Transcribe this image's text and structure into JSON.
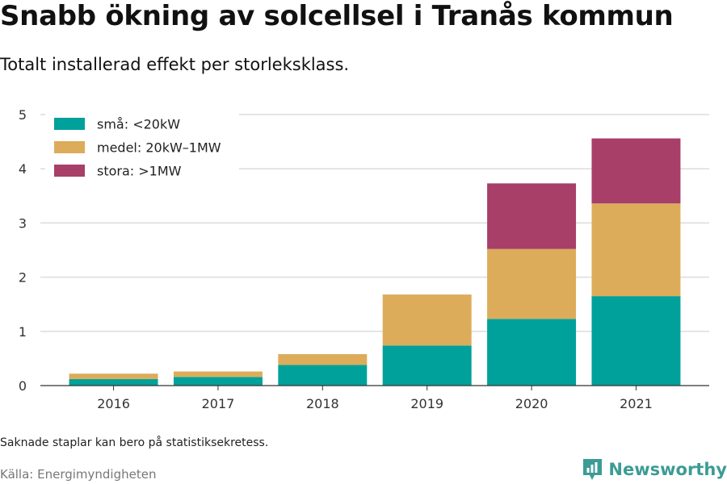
{
  "chart_data": {
    "type": "bar",
    "stacked": true,
    "title": "Snabb ökning av solcellsel i Tranås kommun",
    "subtitle": "Totalt installerad effekt per storleksklass.",
    "categories": [
      "2016",
      "2017",
      "2018",
      "2019",
      "2020",
      "2021"
    ],
    "series": [
      {
        "name": "små: <20kW",
        "color": "#00a19a",
        "values": [
          0.12,
          0.16,
          0.38,
          0.74,
          1.23,
          1.65
        ]
      },
      {
        "name": "medel: 20kW–1MW",
        "color": "#dcac5a",
        "values": [
          0.1,
          0.1,
          0.2,
          0.94,
          1.29,
          1.71
        ]
      },
      {
        "name": "stora: >1MW",
        "color": "#a73f68",
        "values": [
          0,
          0,
          0,
          0,
          1.21,
          1.2
        ]
      }
    ],
    "y_ticks": [
      "0",
      "1",
      "2",
      "3",
      "4",
      "5"
    ],
    "ylim": [
      0,
      5
    ],
    "xlabel": "",
    "ylabel": "",
    "grid": true,
    "legend_position": "top-left"
  },
  "note": "Saknade staplar kan bero på statistiksekretess.",
  "source": "Källa: Energimyndigheten",
  "brand": {
    "name": "Newsworthy",
    "color": "#3b9c95",
    "icon": "newsworthy-logo-icon"
  }
}
